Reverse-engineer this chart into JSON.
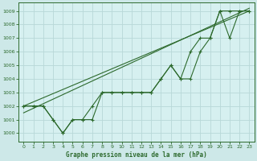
{
  "title": "Graphe pression niveau de la mer (hPa)",
  "background_color": "#cde8e8",
  "plot_bg_color": "#d6f0f0",
  "grid_color": "#b8d8d8",
  "line_color": "#2d6a2d",
  "xlim": [
    -0.5,
    23.5
  ],
  "ylim": [
    999.4,
    1009.6
  ],
  "yticks": [
    1000,
    1001,
    1002,
    1003,
    1004,
    1005,
    1006,
    1007,
    1008,
    1009
  ],
  "xticks": [
    0,
    1,
    2,
    3,
    4,
    5,
    6,
    7,
    8,
    9,
    10,
    11,
    12,
    13,
    14,
    15,
    16,
    17,
    18,
    19,
    20,
    21,
    22,
    23
  ],
  "straight_lines": [
    {
      "x": [
        0,
        23
      ],
      "y": [
        1002.0,
        1009.0
      ]
    },
    {
      "x": [
        0,
        23
      ],
      "y": [
        1001.5,
        1009.2
      ]
    }
  ],
  "series_marked1": {
    "x": [
      0,
      1,
      2,
      3,
      4,
      5,
      6,
      7,
      8,
      9,
      10,
      11,
      12,
      13,
      14,
      15,
      16,
      17,
      18,
      19,
      20,
      21,
      22,
      23
    ],
    "y": [
      1002,
      1002,
      1002,
      1001,
      1000,
      1001,
      1001,
      1001,
      1003,
      1003,
      1003,
      1003,
      1003,
      1003,
      1004,
      1005,
      1004,
      1006,
      1007,
      1007,
      1009,
      1007,
      1009,
      1009
    ]
  },
  "series_marked2": {
    "x": [
      0,
      1,
      2,
      3,
      4,
      5,
      6,
      7,
      8,
      9,
      10,
      11,
      12,
      13,
      14,
      15,
      16,
      17,
      18,
      19,
      20,
      21,
      22,
      23
    ],
    "y": [
      1002,
      1002,
      1002,
      1001,
      1000,
      1001,
      1001,
      1002,
      1003,
      1003,
      1003,
      1003,
      1003,
      1003,
      1004,
      1005,
      1004,
      1004,
      1006,
      1007,
      1009,
      1009,
      1009,
      1009
    ]
  }
}
